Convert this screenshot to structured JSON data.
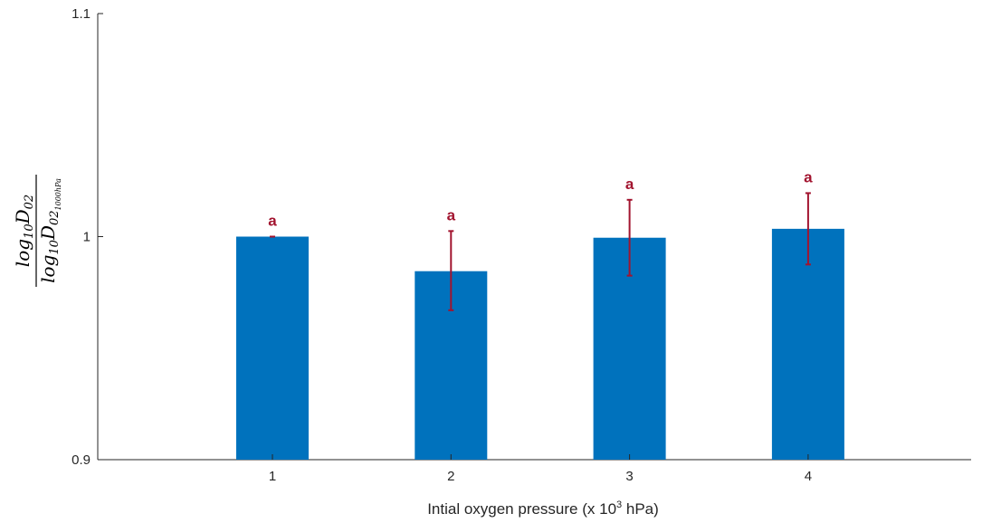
{
  "chart_data": {
    "type": "bar",
    "title": "",
    "categories": [
      "1",
      "2",
      "3",
      "4"
    ],
    "values": [
      1.0,
      0.9845,
      0.9995,
      1.0035
    ],
    "error": [
      {
        "low": 1.0,
        "high": 1.0
      },
      {
        "low": 0.967,
        "high": 1.0025
      },
      {
        "low": 0.9825,
        "high": 1.0165
      },
      {
        "low": 0.9875,
        "high": 1.0195
      }
    ],
    "annotations": [
      "a",
      "a",
      "a",
      "a"
    ],
    "xlabel": {
      "prefix": "Intial oxygen pressure (x 10",
      "sup": "3",
      "suffix": " hPa)"
    },
    "ylabel": {
      "numerator": {
        "text": "log",
        "sub": "10",
        "var": "D",
        "var_sub": "02"
      },
      "denominator": {
        "text": "log",
        "sub": "10",
        "var": "D",
        "var_sub": "02",
        "var_subsub": "1000hPa"
      }
    },
    "ylim": [
      0.9,
      1.1
    ],
    "yticks": [
      "0.9",
      "1",
      "1.1"
    ],
    "grid": false,
    "colors": {
      "bar": "#0072BD",
      "error": "#A2142F",
      "axis": "#262626"
    }
  }
}
